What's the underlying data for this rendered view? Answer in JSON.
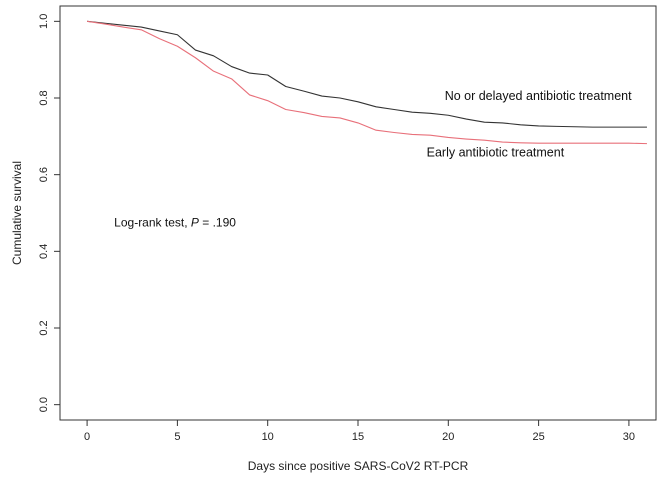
{
  "chart_data": {
    "type": "line",
    "title": "",
    "xlabel": "Days since positive SARS-CoV2 RT-PCR",
    "ylabel": "Cumulative survival",
    "xlim": [
      -1.5,
      31.5
    ],
    "ylim": [
      -0.04,
      1.04
    ],
    "x_ticks": [
      0,
      5,
      10,
      15,
      20,
      25,
      30
    ],
    "y_ticks": [
      0.0,
      0.2,
      0.4,
      0.6,
      0.8,
      1.0
    ],
    "y_tick_labels": [
      "0.0",
      "0.2",
      "0.4",
      "0.6",
      "0.8",
      "1.0"
    ],
    "grid": false,
    "legend": "none",
    "series": [
      {
        "name": "No or delayed antibiotic treatment",
        "color": "#333333",
        "x": [
          0,
          1,
          2,
          3,
          4,
          5,
          6,
          7,
          8,
          9,
          10,
          11,
          12,
          13,
          14,
          15,
          16,
          17,
          18,
          19,
          20,
          21,
          22,
          23,
          24,
          25,
          26,
          27,
          28,
          29,
          30,
          31
        ],
        "y": [
          1.0,
          0.995,
          0.99,
          0.985,
          0.975,
          0.965,
          0.925,
          0.91,
          0.882,
          0.865,
          0.86,
          0.83,
          0.818,
          0.805,
          0.8,
          0.79,
          0.777,
          0.77,
          0.763,
          0.76,
          0.755,
          0.745,
          0.737,
          0.735,
          0.73,
          0.727,
          0.726,
          0.725,
          0.724,
          0.724,
          0.724,
          0.724
        ]
      },
      {
        "name": "Early antibiotic treatment",
        "color": "#e8707a",
        "x": [
          0,
          1,
          2,
          3,
          4,
          5,
          6,
          7,
          8,
          9,
          10,
          11,
          12,
          13,
          14,
          15,
          16,
          17,
          18,
          19,
          20,
          21,
          22,
          23,
          24,
          25,
          26,
          27,
          28,
          29,
          30,
          31
        ],
        "y": [
          1.0,
          0.993,
          0.985,
          0.978,
          0.955,
          0.935,
          0.905,
          0.87,
          0.85,
          0.808,
          0.793,
          0.77,
          0.762,
          0.752,
          0.748,
          0.735,
          0.716,
          0.71,
          0.705,
          0.703,
          0.697,
          0.693,
          0.69,
          0.685,
          0.683,
          0.682,
          0.682,
          0.682,
          0.682,
          0.682,
          0.682,
          0.681
        ]
      }
    ],
    "series_labels": [
      {
        "text": "No or delayed antibiotic treatment",
        "x": 19.8,
        "y": 0.795
      },
      {
        "text": "Early antibiotic treatment",
        "x": 18.8,
        "y": 0.647
      }
    ],
    "annotation": {
      "prefix": "Log-rank test, ",
      "italic": "P",
      "suffix": " = .190",
      "x": 1.5,
      "y": 0.465
    }
  }
}
